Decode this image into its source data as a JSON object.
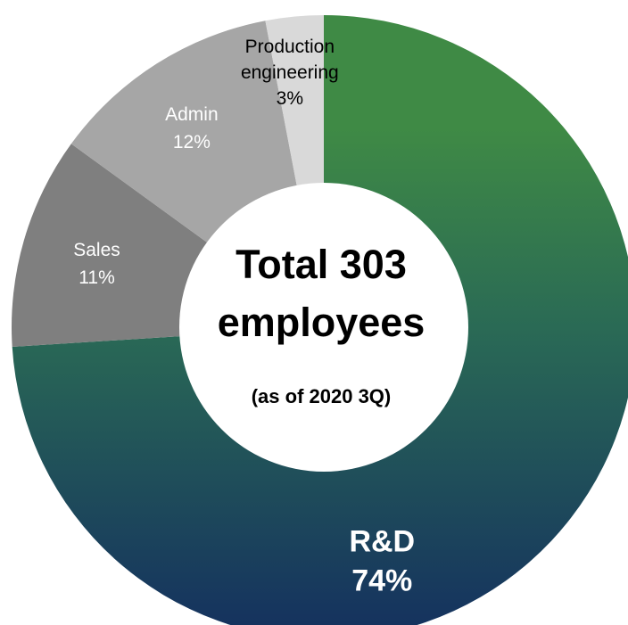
{
  "chart_data": {
    "type": "pie",
    "variant": "donut",
    "categories": [
      "R&D",
      "Sales",
      "Admin",
      "Production engineering"
    ],
    "values": [
      74,
      11,
      12,
      3
    ],
    "unit": "%",
    "slices": [
      {
        "name": "R&D",
        "value": 74,
        "label_lines": [
          "R&D",
          "74%"
        ],
        "color": "#3f8a45",
        "color_end": "#153263",
        "label_color": "#ffffff"
      },
      {
        "name": "Sales",
        "value": 11,
        "label_lines": [
          "Sales",
          "11%"
        ],
        "color": "#7f7f7f",
        "label_color": "#ffffff"
      },
      {
        "name": "Admin",
        "value": 12,
        "label_lines": [
          "Admin",
          "12%"
        ],
        "color": "#a6a6a6",
        "label_color": "#ffffff"
      },
      {
        "name": "Production engineering",
        "value": 3,
        "label_lines": [
          "Production",
          "engineering",
          "3%"
        ],
        "color": "#d9d9d9",
        "label_color": "#000000"
      }
    ],
    "center": {
      "title_lines": [
        "Total 303",
        "employees"
      ],
      "note": "(as of 2020 3Q)"
    },
    "legend": "none",
    "grid": false
  }
}
